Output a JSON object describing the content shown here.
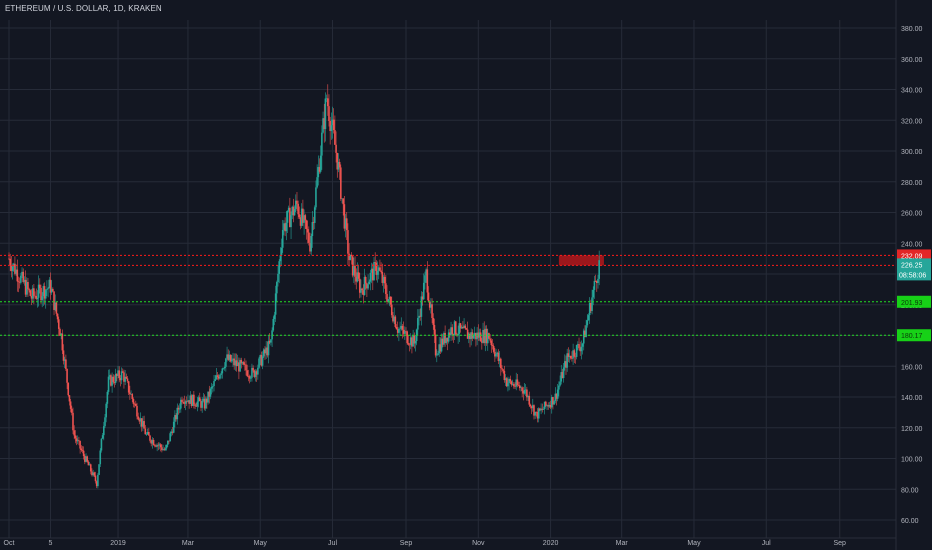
{
  "header": {
    "title": "ETHEREUM / U.S. DOLLAR, 1D, KRAKEN"
  },
  "colors": {
    "background": "#131722",
    "grid": "#262b38",
    "up": "#26a69a",
    "down": "#ef5350",
    "axis_text": "#b2b5be",
    "red_line": "#ff1a1a",
    "green_line": "#22dd22",
    "zone": "#a8181c"
  },
  "chart_data": {
    "type": "candlestick",
    "title": "ETHEREUM / U.S. DOLLAR, 1D, KRAKEN",
    "ylim": [
      50,
      390
    ],
    "y_ticks": [
      "60.00",
      "80.00",
      "100.00",
      "120.00",
      "140.00",
      "160.00",
      "180.00",
      "200.00",
      "220.00",
      "240.00",
      "260.00",
      "280.00",
      "300.00",
      "320.00",
      "340.00",
      "360.00",
      "380.00"
    ],
    "x_ticks": [
      "Oct",
      "5",
      "2019",
      "Mar",
      "May",
      "Jul",
      "Sep",
      "Nov",
      "2020",
      "Mar",
      "May",
      "Jul",
      "Sep"
    ],
    "grid": true,
    "price_path": [
      {
        "date": "2018-10-01",
        "price": 230
      },
      {
        "date": "2018-10-20",
        "price": 205
      },
      {
        "date": "2018-11-05",
        "price": 212
      },
      {
        "date": "2018-11-14",
        "price": 180
      },
      {
        "date": "2018-11-25",
        "price": 115
      },
      {
        "date": "2018-12-14",
        "price": 84
      },
      {
        "date": "2018-12-24",
        "price": 150
      },
      {
        "date": "2019-01-05",
        "price": 155
      },
      {
        "date": "2019-01-25",
        "price": 115
      },
      {
        "date": "2019-02-10",
        "price": 105
      },
      {
        "date": "2019-02-24",
        "price": 140
      },
      {
        "date": "2019-03-15",
        "price": 135
      },
      {
        "date": "2019-04-02",
        "price": 165
      },
      {
        "date": "2019-04-25",
        "price": 155
      },
      {
        "date": "2019-05-10",
        "price": 175
      },
      {
        "date": "2019-05-20",
        "price": 250
      },
      {
        "date": "2019-06-01",
        "price": 265
      },
      {
        "date": "2019-06-12",
        "price": 240
      },
      {
        "date": "2019-06-26",
        "price": 335
      },
      {
        "date": "2019-07-05",
        "price": 295
      },
      {
        "date": "2019-07-15",
        "price": 230
      },
      {
        "date": "2019-07-25",
        "price": 210
      },
      {
        "date": "2019-08-08",
        "price": 225
      },
      {
        "date": "2019-08-25",
        "price": 185
      },
      {
        "date": "2019-09-08",
        "price": 175
      },
      {
        "date": "2019-09-18",
        "price": 220
      },
      {
        "date": "2019-09-26",
        "price": 170
      },
      {
        "date": "2019-10-10",
        "price": 185
      },
      {
        "date": "2019-10-25",
        "price": 180
      },
      {
        "date": "2019-11-10",
        "price": 180
      },
      {
        "date": "2019-11-25",
        "price": 150
      },
      {
        "date": "2019-12-10",
        "price": 145
      },
      {
        "date": "2019-12-20",
        "price": 128
      },
      {
        "date": "2020-01-05",
        "price": 140
      },
      {
        "date": "2020-01-15",
        "price": 165
      },
      {
        "date": "2020-01-28",
        "price": 175
      },
      {
        "date": "2020-02-05",
        "price": 205
      },
      {
        "date": "2020-02-11",
        "price": 226.25
      }
    ],
    "price_lines": [
      {
        "label": "232.09",
        "value": 232.09,
        "color": "red"
      },
      {
        "label": "225.60",
        "value": 225.6,
        "color": "red"
      },
      {
        "label": "201.93",
        "value": 201.93,
        "color": "green"
      },
      {
        "label": "180.17",
        "value": 180.17,
        "color": "green"
      }
    ],
    "last_price": {
      "label": "226.25",
      "value": 226.25,
      "countdown": "08:58:06"
    },
    "zone": {
      "from_date": "2020-01-08",
      "to_date": "2020-02-15",
      "low": 225.6,
      "high": 232.09
    }
  }
}
